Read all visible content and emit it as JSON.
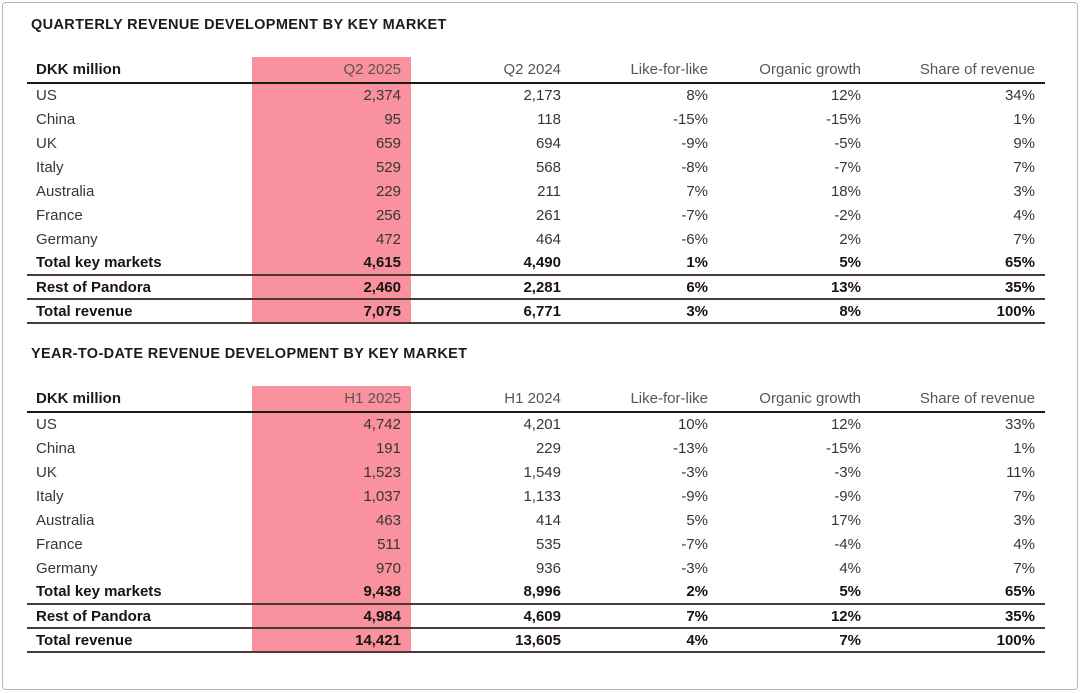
{
  "page": {
    "background": "#ffffff",
    "frame_border": "#b6b6b6"
  },
  "colors": {
    "highlight": "#f9919f",
    "title": "#1d1b18",
    "header_text": "#5c544c",
    "body_text": "#3a3530",
    "total_text": "#171512",
    "header_rule": "#1c1a17",
    "total_rule": "#4a3a32",
    "frame_border": "#b6b6b6",
    "page_bg": "#ffffff"
  },
  "sections": [
    {
      "title": "QUARTERLY REVENUE DEVELOPMENT BY KEY MARKET",
      "table": {
        "unit_label": "DKK million",
        "highlighted_column": "Q2 2025",
        "columns": [
          "Q2 2025",
          "Q2 2024",
          "Like-for-like",
          "Organic growth",
          "Share of revenue"
        ],
        "rows": [
          {
            "label": "US",
            "values": [
              "2,374",
              "2,173",
              "8%",
              "12%",
              "34%"
            ],
            "emphasis": false
          },
          {
            "label": "China",
            "values": [
              "95",
              "118",
              "-15%",
              "-15%",
              "1%"
            ],
            "emphasis": false
          },
          {
            "label": "UK",
            "values": [
              "659",
              "694",
              "-9%",
              "-5%",
              "9%"
            ],
            "emphasis": false
          },
          {
            "label": "Italy",
            "values": [
              "529",
              "568",
              "-8%",
              "-7%",
              "7%"
            ],
            "emphasis": false
          },
          {
            "label": "Australia",
            "values": [
              "229",
              "211",
              "7%",
              "18%",
              "3%"
            ],
            "emphasis": false
          },
          {
            "label": "France",
            "values": [
              "256",
              "261",
              "-7%",
              "-2%",
              "4%"
            ],
            "emphasis": false
          },
          {
            "label": "Germany",
            "values": [
              "472",
              "464",
              "-6%",
              "2%",
              "7%"
            ],
            "emphasis": false
          },
          {
            "label": "Total key markets",
            "values": [
              "4,615",
              "4,490",
              "1%",
              "5%",
              "65%"
            ],
            "emphasis": true
          },
          {
            "label": "Rest of Pandora",
            "values": [
              "2,460",
              "2,281",
              "6%",
              "13%",
              "35%"
            ],
            "emphasis": true
          },
          {
            "label": "Total revenue",
            "values": [
              "7,075",
              "6,771",
              "3%",
              "8%",
              "100%"
            ],
            "emphasis": true
          }
        ]
      }
    },
    {
      "title": "YEAR-TO-DATE REVENUE DEVELOPMENT BY KEY MARKET",
      "table": {
        "unit_label": "DKK million",
        "highlighted_column": "H1 2025",
        "columns": [
          "H1 2025",
          "H1 2024",
          "Like-for-like",
          "Organic growth",
          "Share of revenue"
        ],
        "rows": [
          {
            "label": "US",
            "values": [
              "4,742",
              "4,201",
              "10%",
              "12%",
              "33%"
            ],
            "emphasis": false
          },
          {
            "label": "China",
            "values": [
              "191",
              "229",
              "-13%",
              "-15%",
              "1%"
            ],
            "emphasis": false
          },
          {
            "label": "UK",
            "values": [
              "1,523",
              "1,549",
              "-3%",
              "-3%",
              "11%"
            ],
            "emphasis": false
          },
          {
            "label": "Italy",
            "values": [
              "1,037",
              "1,133",
              "-9%",
              "-9%",
              "7%"
            ],
            "emphasis": false
          },
          {
            "label": "Australia",
            "values": [
              "463",
              "414",
              "5%",
              "17%",
              "3%"
            ],
            "emphasis": false
          },
          {
            "label": "France",
            "values": [
              "511",
              "535",
              "-7%",
              "-4%",
              "4%"
            ],
            "emphasis": false
          },
          {
            "label": "Germany",
            "values": [
              "970",
              "936",
              "-3%",
              "4%",
              "7%"
            ],
            "emphasis": false
          },
          {
            "label": "Total key markets",
            "values": [
              "9,438",
              "8,996",
              "2%",
              "5%",
              "65%"
            ],
            "emphasis": true
          },
          {
            "label": "Rest of Pandora",
            "values": [
              "4,984",
              "4,609",
              "7%",
              "12%",
              "35%"
            ],
            "emphasis": true
          },
          {
            "label": "Total revenue",
            "values": [
              "14,421",
              "13,605",
              "4%",
              "7%",
              "100%"
            ],
            "emphasis": true
          }
        ]
      }
    }
  ]
}
